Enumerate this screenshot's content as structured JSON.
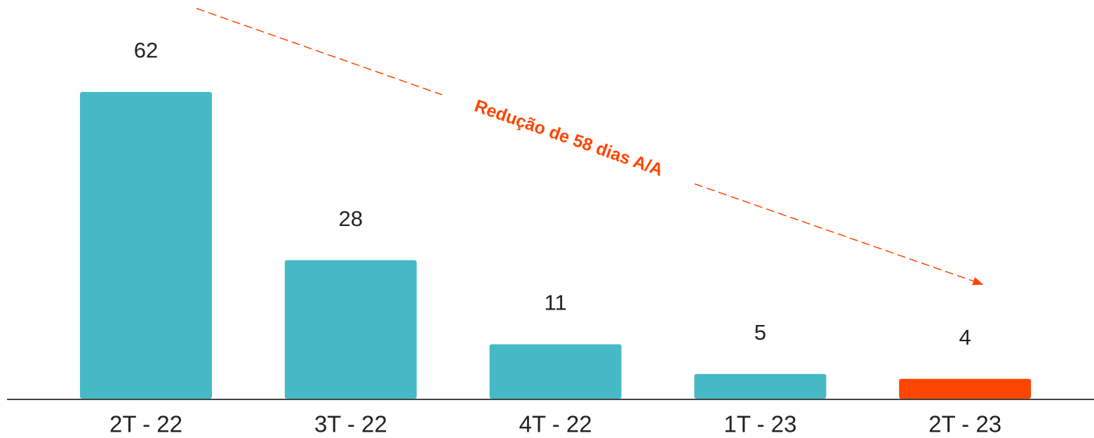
{
  "chart_data": {
    "type": "bar",
    "categories": [
      "2T - 22",
      "3T - 22",
      "4T - 22",
      "1T - 23",
      "2T - 23"
    ],
    "values": [
      62,
      28,
      11,
      5,
      4
    ],
    "colors": [
      "#45bac6",
      "#45bac6",
      "#45bac6",
      "#45bac6",
      "#ff4500"
    ],
    "annotation": "Redução de 58 dias A/A"
  }
}
